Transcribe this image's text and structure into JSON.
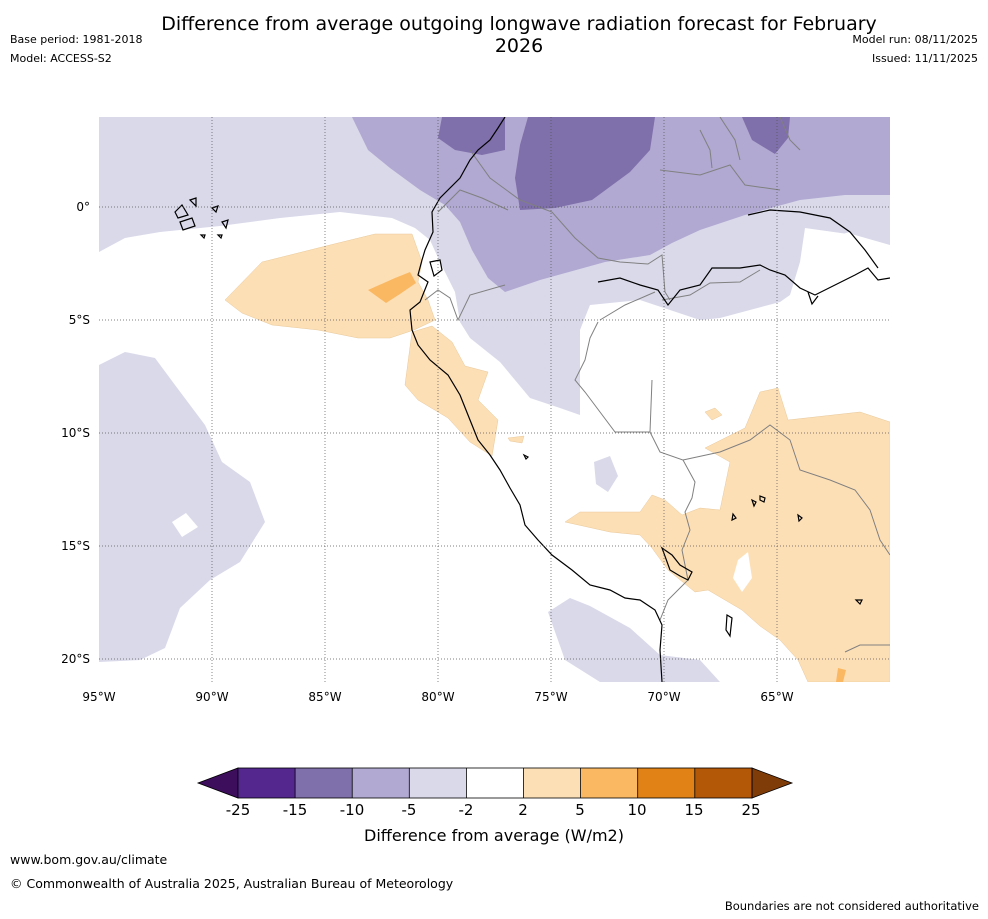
{
  "header": {
    "base_period": "Base period: 1981-2018",
    "model": "Model: ACCESS-S2",
    "model_run": "Model run: 08/11/2025",
    "issued": "Issued: 11/11/2025",
    "title": "Difference from average outgoing longwave radiation forecast for February 2026"
  },
  "map": {
    "lon_ticks": [
      "95°W",
      "90°W",
      "85°W",
      "80°W",
      "75°W",
      "70°W",
      "65°W"
    ],
    "lat_ticks": [
      "0°",
      "5°S",
      "10°S",
      "15°S",
      "20°S"
    ],
    "lon_range": [
      -95,
      -60
    ],
    "lat_range": [
      4,
      -21
    ]
  },
  "colorbar": {
    "ticks": [
      "-25",
      "-15",
      "-10",
      "-5",
      "-2",
      "2",
      "5",
      "10",
      "15",
      "25"
    ],
    "colors": [
      "#3c0e5c",
      "#54278f",
      "#7f6fab",
      "#b1a9d1",
      "#d9d9ea",
      "#ffffff",
      "#fddfb6",
      "#fbb862",
      "#e08215",
      "#b35806",
      "#7f3b08"
    ],
    "title": "Difference from average (W/m2)"
  },
  "footer": {
    "site": "www.bom.gov.au/climate",
    "copyright": "© Commonwealth of Australia 2025, Australian Bureau of Meteorology",
    "disclaimer": "Boundaries are not considered authoritative"
  }
}
